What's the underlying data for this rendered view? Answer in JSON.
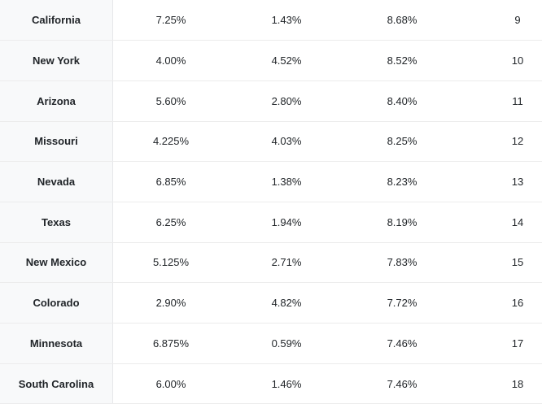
{
  "chart_data": {
    "type": "table",
    "note_visible_headers": "",
    "rows": [
      [
        "California",
        "7.25%",
        "1.43%",
        "8.68%",
        "9"
      ],
      [
        "New York",
        "4.00%",
        "4.52%",
        "8.52%",
        "10"
      ],
      [
        "Arizona",
        "5.60%",
        "2.80%",
        "8.40%",
        "11"
      ],
      [
        "Missouri",
        "4.225%",
        "4.03%",
        "8.25%",
        "12"
      ],
      [
        "Nevada",
        "6.85%",
        "1.38%",
        "8.23%",
        "13"
      ],
      [
        "Texas",
        "6.25%",
        "1.94%",
        "8.19%",
        "14"
      ],
      [
        "New Mexico",
        "5.125%",
        "2.71%",
        "7.83%",
        "15"
      ],
      [
        "Colorado",
        "2.90%",
        "4.82%",
        "7.72%",
        "16"
      ],
      [
        "Minnesota",
        "6.875%",
        "0.59%",
        "7.46%",
        "17"
      ],
      [
        "South Carolina",
        "6.00%",
        "1.46%",
        "7.46%",
        "18"
      ]
    ],
    "colors": {
      "state_column_background": "#f8f9fa",
      "row_divider": "#ececec",
      "text": "#212529"
    }
  }
}
